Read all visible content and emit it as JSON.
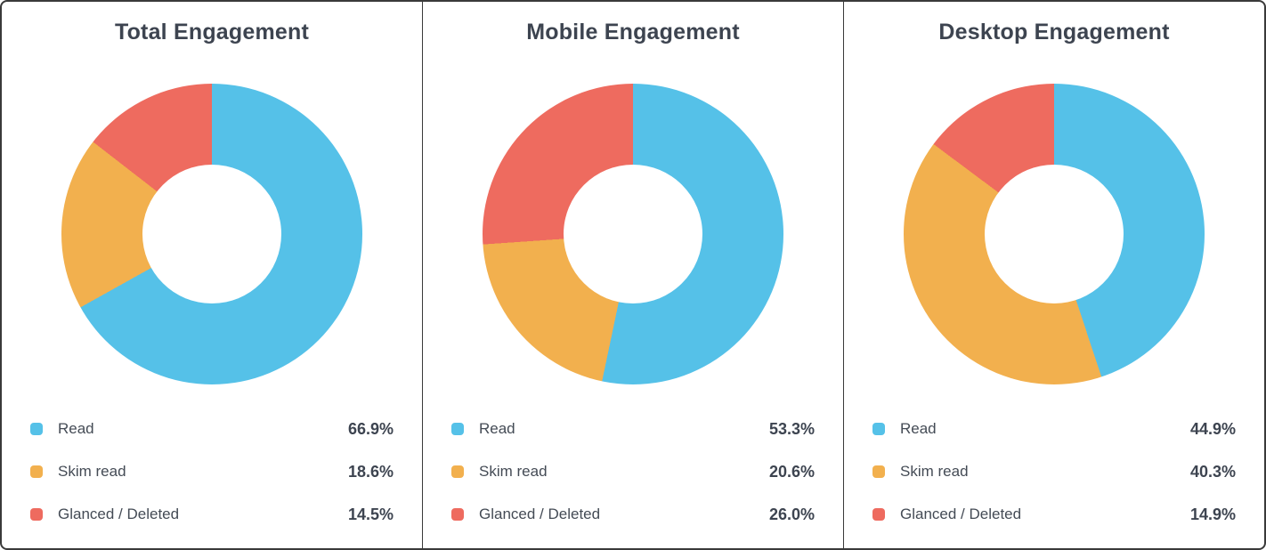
{
  "colors": {
    "read": "#55C1E8",
    "skim_read": "#F2B04E",
    "glanced_deleted": "#EE6B5F",
    "title_text": "#3D4450",
    "label_text": "#444B55",
    "border": "#3A3A3A",
    "background": "#FFFFFF"
  },
  "chart_data": [
    {
      "type": "pie",
      "subtype": "donut",
      "title": "Total Engagement",
      "categories": [
        "Read",
        "Skim read",
        "Glanced / Deleted"
      ],
      "values": [
        66.9,
        18.6,
        14.5
      ],
      "value_labels": [
        "66.9%",
        "18.6%",
        "14.5%"
      ],
      "colors": [
        "#55C1E8",
        "#F2B04E",
        "#EE6B5F"
      ],
      "start_angle_deg": 0,
      "direction": "clockwise",
      "hole_ratio": 0.46,
      "legend_position": "bottom"
    },
    {
      "type": "pie",
      "subtype": "donut",
      "title": "Mobile Engagement",
      "categories": [
        "Read",
        "Skim read",
        "Glanced / Deleted"
      ],
      "values": [
        53.3,
        20.6,
        26.0
      ],
      "value_labels": [
        "53.3%",
        "20.6%",
        "26.0%"
      ],
      "colors": [
        "#55C1E8",
        "#F2B04E",
        "#EE6B5F"
      ],
      "start_angle_deg": 0,
      "direction": "clockwise",
      "hole_ratio": 0.46,
      "legend_position": "bottom"
    },
    {
      "type": "pie",
      "subtype": "donut",
      "title": "Desktop Engagement",
      "categories": [
        "Read",
        "Skim read",
        "Glanced / Deleted"
      ],
      "values": [
        44.9,
        40.3,
        14.9
      ],
      "value_labels": [
        "44.9%",
        "40.3%",
        "14.9%"
      ],
      "colors": [
        "#55C1E8",
        "#F2B04E",
        "#EE6B5F"
      ],
      "start_angle_deg": 0,
      "direction": "clockwise",
      "hole_ratio": 0.46,
      "legend_position": "bottom"
    }
  ]
}
